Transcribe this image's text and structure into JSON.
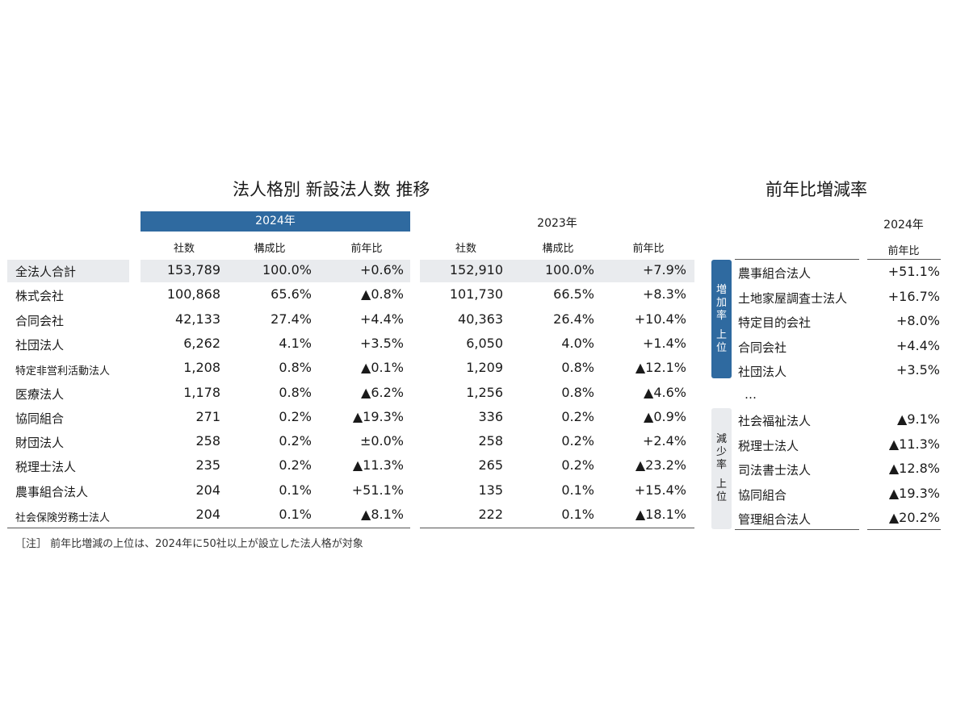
{
  "main_title": "法人格別 新設法人数 推移",
  "side_title": "前年比増減率",
  "year_2024": "2024年",
  "year_2023": "2023年",
  "col_headers": [
    "社数",
    "構成比",
    "前年比"
  ],
  "rows": [
    {
      "label": "全法人合計",
      "v2024": [
        "153,789",
        "100.0%",
        "+0.6%"
      ],
      "v2023": [
        "152,910",
        "100.0%",
        "+7.9%"
      ]
    },
    {
      "label": "株式会社",
      "v2024": [
        "100,868",
        "65.6%",
        "▲0.8%"
      ],
      "v2023": [
        "101,730",
        "66.5%",
        "+8.3%"
      ]
    },
    {
      "label": "合同会社",
      "v2024": [
        "42,133",
        "27.4%",
        "+4.4%"
      ],
      "v2023": [
        "40,363",
        "26.4%",
        "+10.4%"
      ]
    },
    {
      "label": "社団法人",
      "v2024": [
        "6,262",
        "4.1%",
        "+3.5%"
      ],
      "v2023": [
        "6,050",
        "4.0%",
        "+1.4%"
      ]
    },
    {
      "label": "特定非営利活動法人",
      "v2024": [
        "1,208",
        "0.8%",
        "▲0.1%"
      ],
      "v2023": [
        "1,209",
        "0.8%",
        "▲12.1%"
      ]
    },
    {
      "label": "医療法人",
      "v2024": [
        "1,178",
        "0.8%",
        "▲6.2%"
      ],
      "v2023": [
        "1,256",
        "0.8%",
        "▲4.6%"
      ]
    },
    {
      "label": "協同組合",
      "v2024": [
        "271",
        "0.2%",
        "▲19.3%"
      ],
      "v2023": [
        "336",
        "0.2%",
        "▲0.9%"
      ]
    },
    {
      "label": "財団法人",
      "v2024": [
        "258",
        "0.2%",
        "±0.0%"
      ],
      "v2023": [
        "258",
        "0.2%",
        "+2.4%"
      ]
    },
    {
      "label": "税理士法人",
      "v2024": [
        "235",
        "0.2%",
        "▲11.3%"
      ],
      "v2023": [
        "265",
        "0.2%",
        "▲23.2%"
      ]
    },
    {
      "label": "農事組合法人",
      "v2024": [
        "204",
        "0.1%",
        "+51.1%"
      ],
      "v2023": [
        "135",
        "0.1%",
        "+15.4%"
      ]
    },
    {
      "label": "社会保険労務士法人",
      "v2024": [
        "204",
        "0.1%",
        "▲8.1%"
      ],
      "v2023": [
        "222",
        "0.1%",
        "▲18.1%"
      ]
    }
  ],
  "side": {
    "year": "2024年",
    "col_header": "前年比",
    "increase_tab": [
      "増",
      "加",
      "率",
      "",
      "上",
      "位"
    ],
    "decrease_tab": [
      "減",
      "少",
      "率",
      "",
      "上",
      "位"
    ],
    "increase": [
      {
        "label": "農事組合法人",
        "value": "+51.1%"
      },
      {
        "label": "土地家屋調査士法人",
        "value": "+16.7%"
      },
      {
        "label": "特定目的会社",
        "value": "+8.0%"
      },
      {
        "label": "合同会社",
        "value": "+4.4%"
      },
      {
        "label": "社団法人",
        "value": "+3.5%"
      }
    ],
    "ellipsis": "…",
    "decrease": [
      {
        "label": "社会福祉法人",
        "value": "▲9.1%"
      },
      {
        "label": "税理士法人",
        "value": "▲11.3%"
      },
      {
        "label": "司法書士法人",
        "value": "▲12.8%"
      },
      {
        "label": "協同組合",
        "value": "▲19.3%"
      },
      {
        "label": "管理組合法人",
        "value": "▲20.2%"
      }
    ]
  },
  "note": "［注］ 前年比増減の上位は、2024年に50社以上が設立した法人格が対象"
}
